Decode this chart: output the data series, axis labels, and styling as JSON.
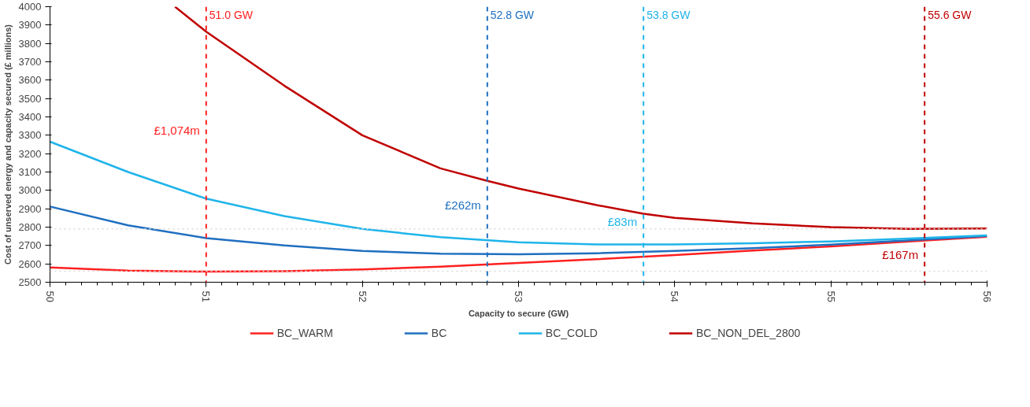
{
  "chart_data": {
    "type": "line",
    "xlabel": "Capacity to secure (GW)",
    "ylabel": "Cost of unserved energy and capacity secured (£ millions)",
    "xlim": [
      50,
      56
    ],
    "xticks": [
      50,
      51,
      52,
      53,
      54,
      55,
      56
    ],
    "ylim": [
      2500,
      4000
    ],
    "yticks": [
      2500,
      2600,
      2700,
      2800,
      2900,
      3000,
      3100,
      3200,
      3300,
      3400,
      3500,
      3600,
      3700,
      3800,
      3900,
      4000
    ],
    "grid": false,
    "legend": "bottom",
    "line_style": "solid",
    "marker": "none",
    "series": [
      {
        "name": "BC_WARM",
        "color": "#ff2020",
        "x": [
          50,
          50.5,
          51,
          51.5,
          52,
          52.5,
          53,
          53.5,
          54,
          54.5,
          55,
          55.5,
          56
        ],
        "values": [
          2580,
          2563,
          2558,
          2560,
          2570,
          2585,
          2605,
          2625,
          2648,
          2672,
          2695,
          2722,
          2748
        ]
      },
      {
        "name": "BC",
        "color": "#1f6fc0",
        "x": [
          50,
          50.5,
          51,
          51.5,
          52,
          52.5,
          53,
          53.5,
          54,
          54.5,
          55,
          55.5,
          56
        ],
        "values": [
          2912,
          2810,
          2740,
          2700,
          2670,
          2655,
          2652,
          2658,
          2670,
          2685,
          2705,
          2728,
          2752
        ]
      },
      {
        "name": "BC_COLD",
        "color": "#1fb4ea",
        "x": [
          50,
          50.5,
          51,
          51.5,
          52,
          52.5,
          53,
          53.5,
          54,
          54.5,
          55,
          55.5,
          56
        ],
        "values": [
          3265,
          3100,
          2955,
          2860,
          2790,
          2745,
          2718,
          2706,
          2706,
          2712,
          2722,
          2738,
          2755
        ]
      },
      {
        "name": "BC_NON_DEL_2800",
        "color": "#c00000",
        "x": [
          50.8,
          51,
          51.5,
          52,
          52.5,
          52.8,
          53,
          53.5,
          53.8,
          54,
          54.5,
          55,
          55.5,
          56
        ],
        "values": [
          4000,
          3864,
          3570,
          3300,
          3120,
          3052,
          3010,
          2920,
          2873,
          2850,
          2820,
          2800,
          2790,
          2792
        ]
      }
    ],
    "ref_lines": [
      {
        "axis": "x",
        "value": 51.0,
        "label": "51.0 GW",
        "color": "#ff2020",
        "line_style": "dashed"
      },
      {
        "axis": "x",
        "value": 52.8,
        "label": "52.8 GW",
        "color": "#1f6fc0",
        "line_style": "dashed"
      },
      {
        "axis": "x",
        "value": 53.8,
        "label": "53.8 GW",
        "color": "#1fb4ea",
        "line_style": "dashed"
      },
      {
        "axis": "x",
        "value": 55.6,
        "label": "55.6 GW",
        "color": "#c00000",
        "line_style": "dashed"
      },
      {
        "axis": "y",
        "value": 2790,
        "color": "#d9d9d9",
        "line_style": "dotted"
      },
      {
        "axis": "y",
        "value": 2560,
        "color": "#d9d9d9",
        "line_style": "dotted"
      }
    ],
    "annotations": [
      {
        "text": "£1,074m",
        "x": 51,
        "y": 3327
      },
      {
        "text": "£262m",
        "x": 52.8,
        "y": 2921
      },
      {
        "text": "£83m",
        "x": 53.8,
        "y": 2831
      },
      {
        "text": "£167m",
        "x": 55.6,
        "y": 2650
      }
    ]
  }
}
